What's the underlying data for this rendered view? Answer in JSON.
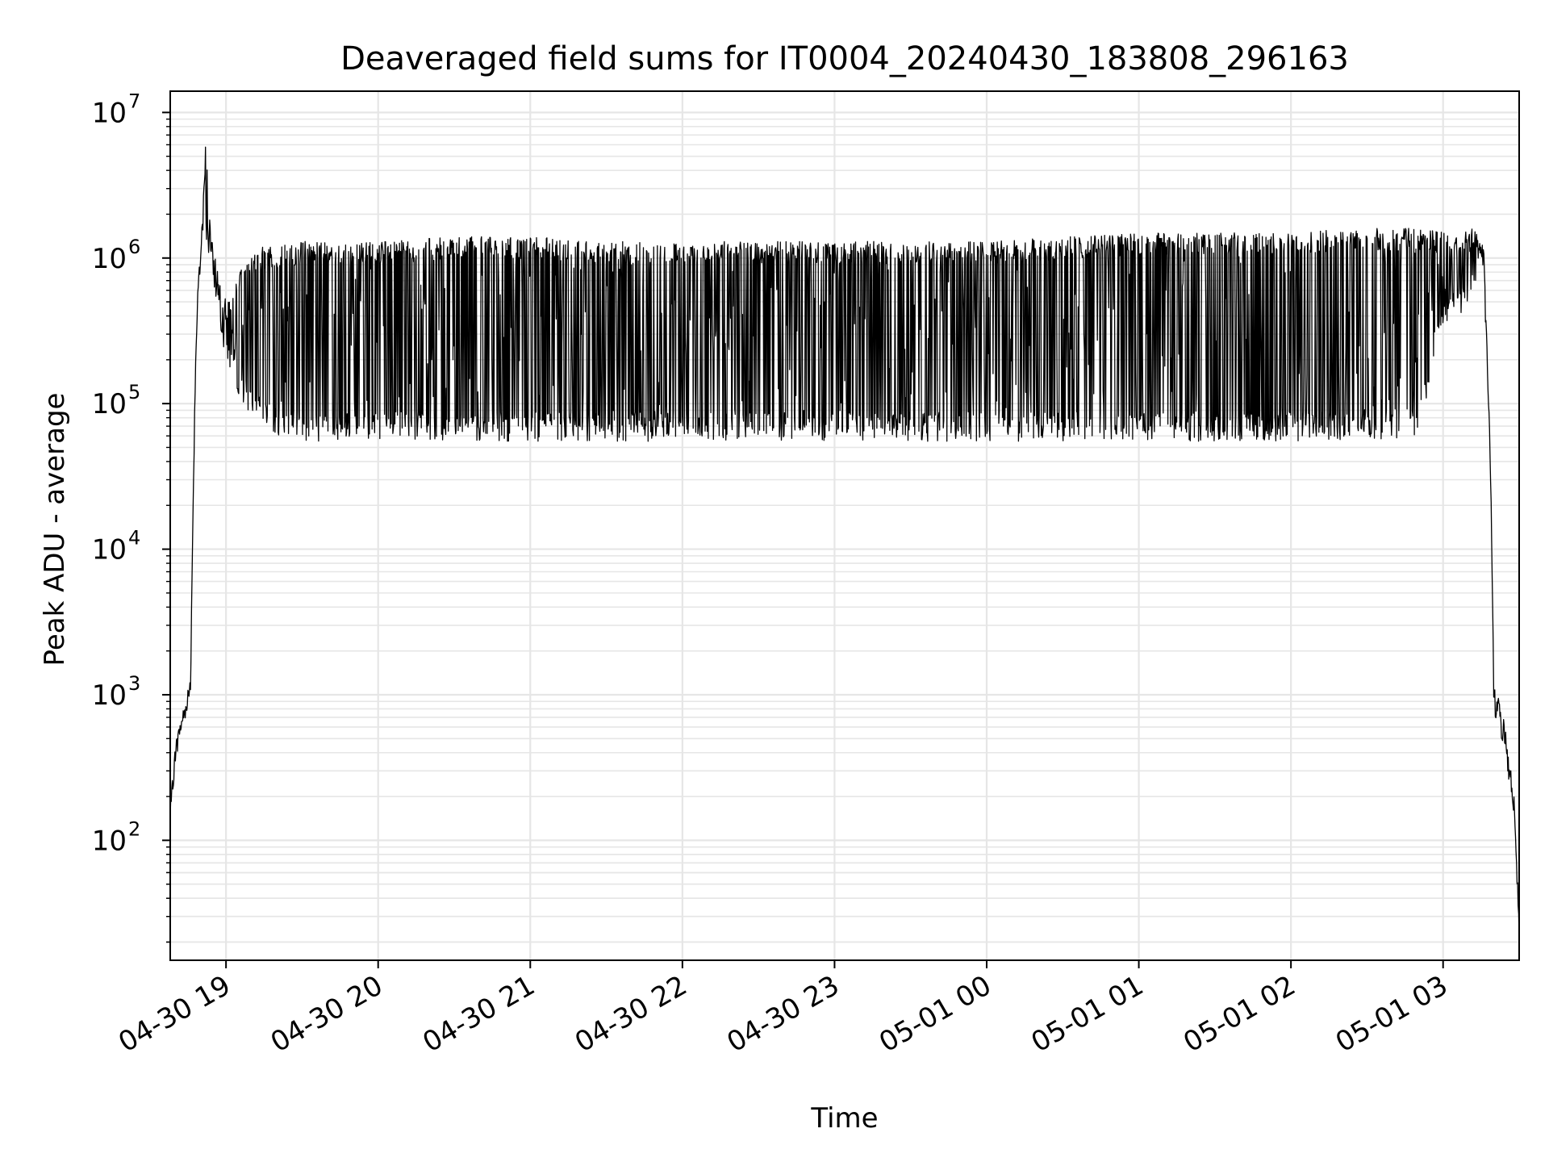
{
  "chart_data": {
    "type": "line",
    "title": "Deaveraged field sums for IT0004_20240430_183808_296163",
    "xlabel": "Time",
    "ylabel": "Peak ADU - average",
    "x_ticks": [
      "04-30 19",
      "04-30 20",
      "04-30 21",
      "04-30 22",
      "04-30 23",
      "05-01 00",
      "05-01 01",
      "05-01 02",
      "05-01 03"
    ],
    "y_ticks": [
      {
        "base": "10",
        "exp": "2",
        "value": 100
      },
      {
        "base": "10",
        "exp": "3",
        "value": 1000
      },
      {
        "base": "10",
        "exp": "4",
        "value": 10000
      },
      {
        "base": "10",
        "exp": "5",
        "value": 100000
      },
      {
        "base": "10",
        "exp": "6",
        "value": 1000000
      },
      {
        "base": "10",
        "exp": "7",
        "value": 10000000
      }
    ],
    "x_range": [
      "2024-04-30 18:38",
      "2024-05-01 03:30"
    ],
    "y_range": [
      15,
      14000000
    ],
    "y_scale": "log",
    "grid": true,
    "line_color": "#000000",
    "grid_color": "#e6e6e6",
    "series": [
      {
        "x": [
          "2024-04-30 18:38",
          "2024-04-30 18:40",
          "2024-04-30 18:42",
          "2024-04-30 18:44",
          "2024-04-30 18:46",
          "2024-04-30 18:47",
          "2024-04-30 18:48",
          "2024-04-30 18:49",
          "2024-04-30 18:50",
          "2024-04-30 18:52",
          "2024-04-30 18:54",
          "2024-04-30 18:55",
          "2024-04-30 18:56",
          "2024-04-30 18:57",
          "2024-04-30 18:58",
          "2024-04-30 19:00",
          "2024-04-30 19:03",
          "2024-04-30 19:06",
          "2024-04-30 19:10",
          "2024-04-30 19:15",
          "2024-04-30 19:20",
          "2024-04-30 19:30",
          "2024-04-30 19:45",
          "2024-04-30 20:00",
          "2024-04-30 20:30",
          "2024-04-30 21:00",
          "2024-04-30 21:30",
          "2024-04-30 22:00",
          "2024-04-30 22:30",
          "2024-04-30 23:00",
          "2024-04-30 23:30",
          "2024-05-01 00:00",
          "2024-05-01 00:30",
          "2024-05-01 01:00",
          "2024-05-01 01:30",
          "2024-05-01 02:00",
          "2024-05-01 02:30",
          "2024-05-01 02:50",
          "2024-05-01 03:00",
          "2024-05-01 03:08",
          "2024-05-01 03:12",
          "2024-05-01 03:14",
          "2024-05-01 03:16",
          "2024-05-01 03:18",
          "2024-05-01 03:19",
          "2024-05-01 03:20",
          "2024-05-01 03:22",
          "2024-05-01 03:24",
          "2024-05-01 03:26",
          "2024-05-01 03:28",
          "2024-05-01 03:30"
        ],
        "upper": [
          150,
          400,
          600,
          800,
          1200,
          20000,
          200000,
          600000,
          1000000,
          7000000,
          1400000,
          1200000,
          1000000,
          800000,
          700000,
          500000,
          600000,
          1000000,
          1100000,
          1200000,
          1200000,
          1300000,
          1300000,
          1300000,
          1400000,
          1400000,
          1300000,
          1300000,
          1300000,
          1300000,
          1300000,
          1300000,
          1400000,
          1500000,
          1500000,
          1500000,
          1600000,
          1600000,
          1500000,
          1500000,
          1600000,
          1500000,
          1200000,
          100000,
          20000,
          1200,
          900,
          700,
          400,
          200,
          25
        ],
        "lower": [
          150,
          400,
          600,
          800,
          1200,
          20000,
          200000,
          600000,
          1000000,
          1200000,
          900000,
          700000,
          500000,
          400000,
          300000,
          200000,
          150000,
          100000,
          80000,
          70000,
          60000,
          55000,
          55000,
          55000,
          55000,
          55000,
          55000,
          55000,
          55000,
          55000,
          55000,
          55000,
          55000,
          55000,
          55000,
          55000,
          55000,
          60000,
          350000,
          400000,
          600000,
          800000,
          800000,
          100000,
          20000,
          700,
          600,
          400,
          250,
          150,
          25
        ]
      }
    ]
  }
}
